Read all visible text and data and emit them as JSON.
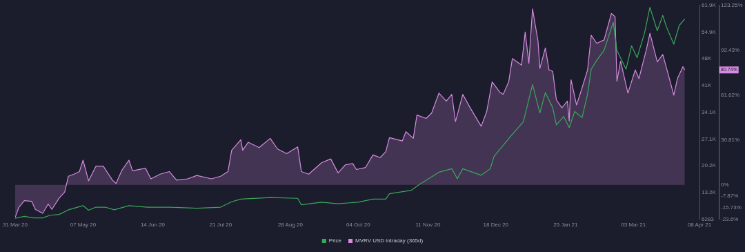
{
  "chart_data": {
    "type": "line",
    "xlim": [
      "2020-03-31",
      "2021-04-08"
    ],
    "xticks": [
      {
        "value": "2020-03-31",
        "label": "31 Mar 20"
      },
      {
        "value": "2020-05-07",
        "label": "07 May 20"
      },
      {
        "value": "2020-06-14",
        "label": "14 Jun 20"
      },
      {
        "value": "2020-07-21",
        "label": "21 Jul 20"
      },
      {
        "value": "2020-08-28",
        "label": "28 Aug 20"
      },
      {
        "value": "2020-10-04",
        "label": "04 Oct 20"
      },
      {
        "value": "2020-11-11",
        "label": "11 Nov 20"
      },
      {
        "value": "2020-12-18",
        "label": "18 Dec 20"
      },
      {
        "value": "2021-01-25",
        "label": "25 Jan 21"
      },
      {
        "value": "2021-03-03",
        "label": "03 Mar 21"
      },
      {
        "value": "2021-04-08",
        "label": "08 Apr 21"
      }
    ],
    "ylim": [
      6283,
      61899
    ],
    "yticks": [
      6283,
      {
        "value": 13235,
        "label": "13.2K"
      },
      {
        "value": 20187,
        "label": "20.2K"
      },
      {
        "value": 27139,
        "label": "27.1K"
      },
      {
        "value": 34091,
        "label": "34.1K"
      },
      {
        "value": 41043,
        "label": "41K"
      },
      {
        "value": 47995,
        "label": "48K"
      },
      {
        "value": 54947,
        "label": "54.9K"
      },
      {
        "value": 61899,
        "label": "61.9K"
      }
    ],
    "y2lim": [
      -23.6,
      123.25
    ],
    "y2ticks": [
      {
        "value": -23.6,
        "label": "-23.6%"
      },
      {
        "value": -15.73,
        "label": "-15.73%"
      },
      {
        "value": -7.87,
        "label": "-7.87%"
      },
      {
        "value": 0,
        "label": "0%"
      },
      {
        "value": 30.81,
        "label": "30.81%"
      },
      {
        "value": 61.62,
        "label": "61.62%"
      },
      {
        "value": 92.43,
        "label": "92.43%"
      },
      {
        "value": 123.25,
        "label": "123.25%"
      }
    ],
    "grid": false,
    "legend": "bottom",
    "marker": "none",
    "annotations": [
      "80.74%"
    ],
    "series": [
      {
        "name": "Price",
        "color": "#3aa85c",
        "x": [
          "2020-03-31",
          "2020-04-05",
          "2020-04-10",
          "2020-04-15",
          "2020-04-19",
          "2020-04-24",
          "2020-04-29",
          "2020-05-07",
          "2020-05-10",
          "2020-05-14",
          "2020-05-19",
          "2020-05-24",
          "2020-06-01",
          "2020-06-11",
          "2020-06-23",
          "2020-07-08",
          "2020-07-21",
          "2020-07-27",
          "2020-08-01",
          "2020-08-17",
          "2020-09-01",
          "2020-09-03",
          "2020-09-14",
          "2020-09-23",
          "2020-10-04",
          "2020-10-12",
          "2020-10-19",
          "2020-10-21",
          "2020-11-02",
          "2020-11-06",
          "2020-11-17",
          "2020-11-24",
          "2020-11-27",
          "2020-11-30",
          "2020-12-10",
          "2020-12-15",
          "2020-12-17",
          "2020-12-26",
          "2021-01-02",
          "2021-01-07",
          "2021-01-11",
          "2021-01-14",
          "2021-01-18",
          "2021-01-20",
          "2021-01-24",
          "2021-01-27",
          "2021-01-30",
          "2021-02-03",
          "2021-02-06",
          "2021-02-08",
          "2021-02-11",
          "2021-02-15",
          "2021-02-18",
          "2021-02-20",
          "2021-02-22",
          "2021-02-27",
          "2021-03-02",
          "2021-03-05",
          "2021-03-09",
          "2021-03-12",
          "2021-03-16",
          "2021-03-19",
          "2021-03-21",
          "2021-03-25",
          "2021-03-28",
          "2021-03-31"
        ],
        "values": [
          6500,
          7000,
          6600,
          6600,
          7300,
          7500,
          8700,
          9800,
          8600,
          9400,
          9400,
          8700,
          9800,
          9400,
          9400,
          9100,
          9400,
          10800,
          11500,
          11900,
          11700,
          10000,
          10700,
          10300,
          10700,
          11500,
          11500,
          12900,
          13800,
          15200,
          18500,
          19400,
          16800,
          19400,
          17700,
          19400,
          22600,
          27800,
          31600,
          41300,
          33900,
          39200,
          35300,
          30800,
          33000,
          30100,
          34300,
          32700,
          38800,
          45300,
          47600,
          50200,
          54600,
          57500,
          50200,
          45300,
          51400,
          48300,
          54600,
          61400,
          55300,
          59300,
          56300,
          51800,
          56700,
          58400
        ]
      },
      {
        "name": "MVRV USD intraday (365d)",
        "type": "area",
        "axis": "y2",
        "color": "#d68ce0",
        "x": [
          "2020-03-31",
          "2020-04-02",
          "2020-04-05",
          "2020-04-09",
          "2020-04-11",
          "2020-04-15",
          "2020-04-18",
          "2020-04-20",
          "2020-04-24",
          "2020-04-27",
          "2020-04-29",
          "2020-05-02",
          "2020-05-05",
          "2020-05-07",
          "2020-05-10",
          "2020-05-14",
          "2020-05-18",
          "2020-05-23",
          "2020-05-25",
          "2020-05-28",
          "2020-06-01",
          "2020-06-03",
          "2020-06-10",
          "2020-06-13",
          "2020-06-18",
          "2020-06-23",
          "2020-06-27",
          "2020-07-03",
          "2020-07-08",
          "2020-07-16",
          "2020-07-21",
          "2020-07-25",
          "2020-07-27",
          "2020-08-01",
          "2020-08-02",
          "2020-08-05",
          "2020-08-11",
          "2020-08-17",
          "2020-08-21",
          "2020-08-26",
          "2020-09-01",
          "2020-09-03",
          "2020-09-07",
          "2020-09-14",
          "2020-09-19",
          "2020-09-23",
          "2020-09-27",
          "2020-10-01",
          "2020-10-03",
          "2020-10-08",
          "2020-10-12",
          "2020-10-16",
          "2020-10-19",
          "2020-10-21",
          "2020-10-28",
          "2020-10-30",
          "2020-11-03",
          "2020-11-05",
          "2020-11-10",
          "2020-11-13",
          "2020-11-17",
          "2020-11-21",
          "2020-11-24",
          "2020-11-26",
          "2020-11-30",
          "2020-12-04",
          "2020-12-10",
          "2020-12-13",
          "2020-12-16",
          "2020-12-20",
          "2020-12-22",
          "2020-12-25",
          "2020-12-27",
          "2021-01-01",
          "2021-01-03",
          "2021-01-05",
          "2021-01-07",
          "2021-01-10",
          "2021-01-11",
          "2021-01-14",
          "2021-01-16",
          "2021-01-18",
          "2021-01-20",
          "2021-01-23",
          "2021-01-26",
          "2021-01-27",
          "2021-01-28",
          "2021-01-31",
          "2021-02-03",
          "2021-02-06",
          "2021-02-08",
          "2021-02-11",
          "2021-02-15",
          "2021-02-19",
          "2021-02-21",
          "2021-02-22",
          "2021-02-24",
          "2021-02-28",
          "2021-03-04",
          "2021-03-06",
          "2021-03-10",
          "2021-03-12",
          "2021-03-16",
          "2021-03-19",
          "2021-03-22",
          "2021-03-25",
          "2021-03-27",
          "2021-03-30",
          "2021-03-31"
        ],
        "values": [
          -22.4,
          -15.5,
          -10.9,
          -11.4,
          -16.9,
          -19.6,
          -13.2,
          -16.9,
          -9.1,
          -5.0,
          5.9,
          7.3,
          9.1,
          16.9,
          2.7,
          12.8,
          12.8,
          3.2,
          0.9,
          9.6,
          16.9,
          9.6,
          11.4,
          4.1,
          7.3,
          9.1,
          3.2,
          4.1,
          6.4,
          4.1,
          5.9,
          9.1,
          23.7,
          31.0,
          23.7,
          29.2,
          25.6,
          31.9,
          24.6,
          21.4,
          26.0,
          9.1,
          7.3,
          15.1,
          17.8,
          8.2,
          13.7,
          14.6,
          10.5,
          11.9,
          20.5,
          18.7,
          22.8,
          32.4,
          30.1,
          36.5,
          31.9,
          47.9,
          45.6,
          49.3,
          63.0,
          57.5,
          62.1,
          43.4,
          62.1,
          52.9,
          40.2,
          50.2,
          70.7,
          63.9,
          62.1,
          70.7,
          86.7,
          82.2,
          105.0,
          83.5,
          120.9,
          98.6,
          79.9,
          94.0,
          78.9,
          78.0,
          58.4,
          52.9,
          57.5,
          43.8,
          72.1,
          54.8,
          66.6,
          78.9,
          102.7,
          97.2,
          99.5,
          117.7,
          115.5,
          71.2,
          84.9,
          63.0,
          78.9,
          73.0,
          92.6,
          104.1,
          84.4,
          89.5,
          75.8,
          61.6,
          73.0,
          81.2,
          78.9
        ]
      }
    ]
  }
}
